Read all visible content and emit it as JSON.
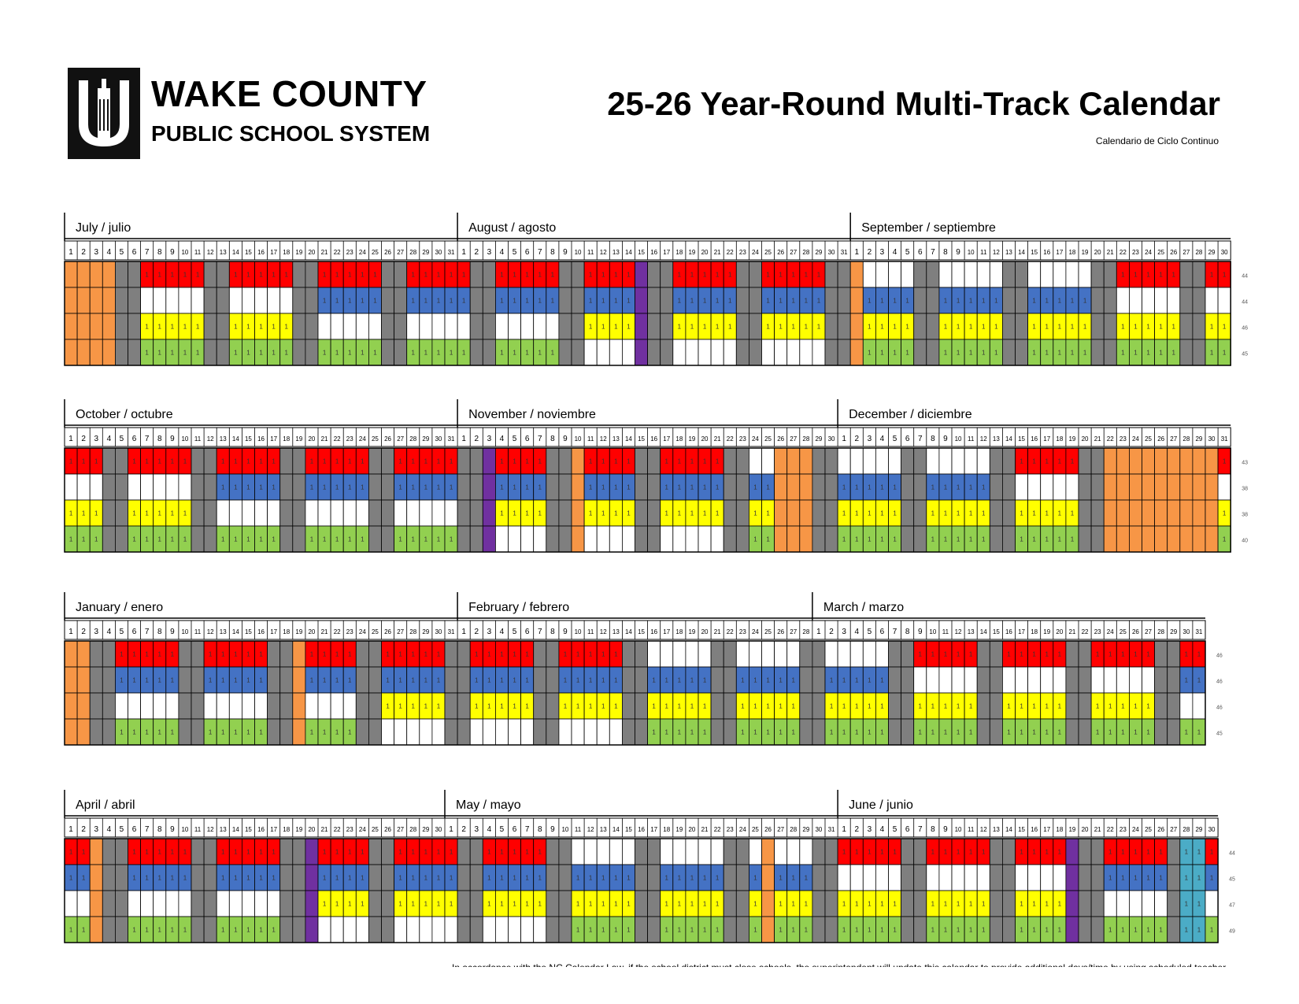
{
  "header": {
    "org_name": "WAKE COUNTY",
    "org_sub": "PUBLIC SCHOOL SYSTEM",
    "title": "25-26 Year-Round Multi-Track Calendar",
    "subtitle": "Calendario de Ciclo Continuo"
  },
  "legend_colors": {
    "track1": "#ff0000",
    "track2": "#4472c4",
    "track3": "#ffff00",
    "track4": "#92d050",
    "weekend": "#7f7f7f",
    "holiday": "#f79646",
    "workday": "#7030a0",
    "makeup": "#4bacc6",
    "open": "#ffffff"
  },
  "bands": [
    {
      "months": [
        {
          "label": "July / julio",
          "days": 31
        },
        {
          "label": "August / agosto",
          "days": 31
        },
        {
          "label": "September / septiembre",
          "days": 30
        }
      ],
      "track_counts": [
        "44",
        "44",
        "46",
        "45"
      ]
    },
    {
      "months": [
        {
          "label": "October / octubre",
          "days": 31
        },
        {
          "label": "November / noviembre",
          "days": 30
        },
        {
          "label": "December / diciembre",
          "days": 31
        }
      ],
      "track_counts": [
        "43",
        "38",
        "38",
        "40"
      ]
    },
    {
      "months": [
        {
          "label": "January / enero",
          "days": 31
        },
        {
          "label": "February / febrero",
          "days": 28
        },
        {
          "label": "March / marzo",
          "days": 31
        }
      ],
      "track_counts": [
        "46",
        "46",
        "46",
        "45"
      ]
    },
    {
      "months": [
        {
          "label": "April / abril",
          "days": 30
        },
        {
          "label": "May / mayo",
          "days": 31
        },
        {
          "label": "June / junio",
          "days": 30
        }
      ],
      "track_counts": [
        "44",
        "45",
        "47",
        "49"
      ]
    }
  ],
  "footnote": "In accordance with the NC Calendar Law, if the school district must close schools, the superintendent will update this calendar to provide additional days/time by using scheduled teacher"
}
